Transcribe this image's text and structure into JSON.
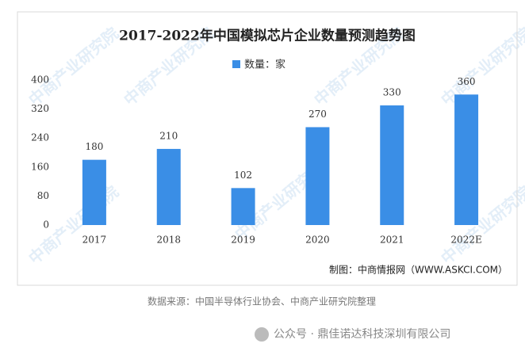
{
  "chart_data": {
    "type": "bar",
    "title": "2017-2022年中国模拟芯片企业数量预测趋势图",
    "categories": [
      "2017",
      "2018",
      "2019",
      "2020",
      "2021",
      "2022E"
    ],
    "series": [
      {
        "name": "数量：家",
        "color": "#3a8ee6",
        "values": [
          180,
          210,
          102,
          270,
          330,
          360
        ]
      }
    ],
    "ylim": [
      0,
      400
    ],
    "yticks": [
      0,
      80,
      160,
      240,
      320,
      400
    ],
    "grid": false,
    "credit": "制图：中商情报网（WWW.ASKCI.COM）",
    "watermark": "中商产业研究院"
  },
  "source": "数据来源：中国半导体行业协会、中商产业研究院整理",
  "account": "公众号 · 鼎佳诺达科技深圳有限公司"
}
